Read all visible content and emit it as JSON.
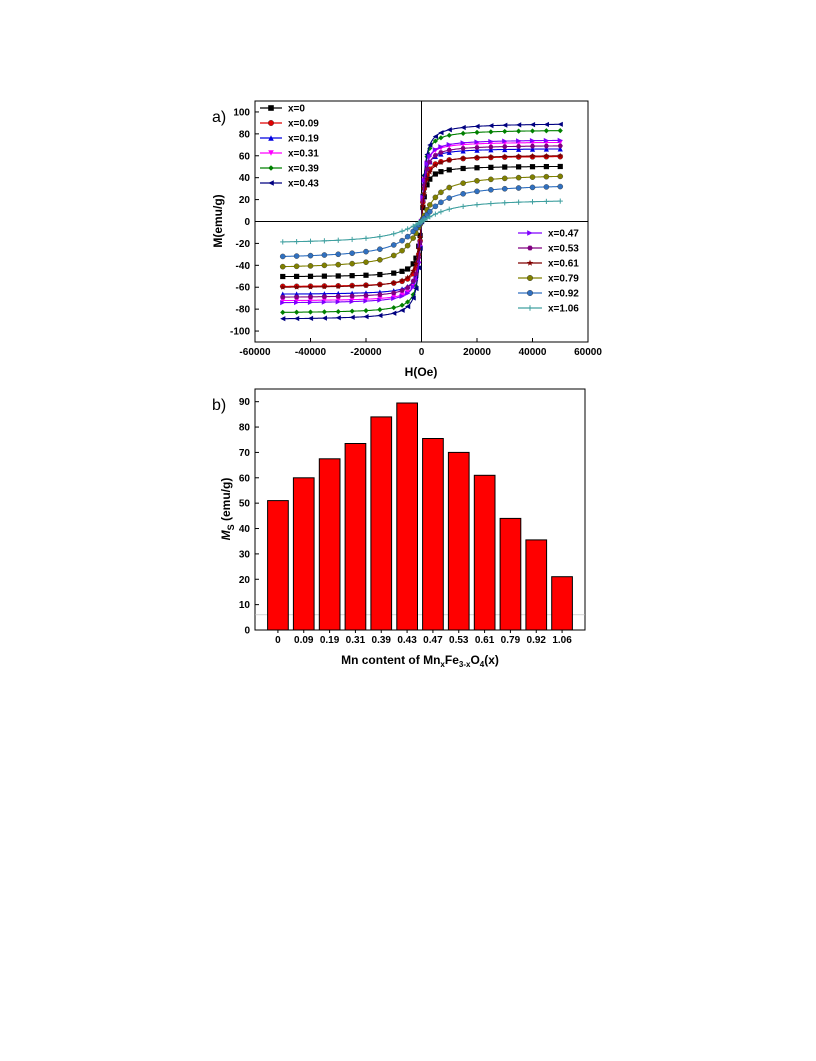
{
  "figure": {
    "panel_a_label": "a)",
    "panel_b_label": "b)"
  },
  "chart_data": [
    {
      "type": "line",
      "panel": "a)",
      "xlabel": "H(Oe)",
      "ylabel": "M(emu/g)",
      "xlim": [
        -60000,
        60000
      ],
      "ylim": [
        -110,
        110
      ],
      "xticks": [
        -60000,
        -40000,
        -20000,
        0,
        20000,
        40000,
        60000
      ],
      "yticks": [
        -100,
        -80,
        -60,
        -40,
        -20,
        0,
        20,
        40,
        60,
        80,
        100
      ],
      "grid": false,
      "legend_placement": [
        "top-left",
        "bottom-right"
      ],
      "x": [
        -50000,
        -45000,
        -40000,
        -35000,
        -30000,
        -25000,
        -20000,
        -15000,
        -10000,
        -7000,
        -5000,
        -3000,
        -2000,
        -1000,
        -500,
        0,
        500,
        1000,
        2000,
        3000,
        5000,
        7000,
        10000,
        15000,
        20000,
        25000,
        30000,
        35000,
        40000,
        45000,
        50000
      ],
      "series": [
        {
          "name": "x=0",
          "color": "#000000",
          "marker": "square",
          "ms": 51,
          "hs": 1200
        },
        {
          "name": "x=0.09",
          "color": "#e00000",
          "marker": "circle",
          "ms": 60,
          "hs": 1000
        },
        {
          "name": "x=0.19",
          "color": "#0000e0",
          "marker": "triangle-up",
          "ms": 67,
          "hs": 900
        },
        {
          "name": "x=0.31",
          "color": "#ff00ff",
          "marker": "triangle-down",
          "ms": 73,
          "hs": 900
        },
        {
          "name": "x=0.39",
          "color": "#008000",
          "marker": "diamond",
          "ms": 84,
          "hs": 1000
        },
        {
          "name": "x=0.43",
          "color": "#000080",
          "marker": "triangle-left",
          "ms": 90,
          "hs": 1100
        },
        {
          "name": "x=0.47",
          "color": "#8000ff",
          "marker": "triangle-right",
          "ms": 75,
          "hs": 1000
        },
        {
          "name": "x=0.53",
          "color": "#800080",
          "marker": "hexagon",
          "ms": 70,
          "hs": 1100
        },
        {
          "name": "x=0.61",
          "color": "#800000",
          "marker": "star",
          "ms": 61,
          "hs": 1300
        },
        {
          "name": "x=0.79",
          "color": "#808000",
          "marker": "circle",
          "ms": 44,
          "hs": 5000
        },
        {
          "name": "x=0.92",
          "color": "#3070c0",
          "marker": "circle",
          "ms": 35,
          "hs": 7000
        },
        {
          "name": "x=1.06",
          "color": "#40a0a0",
          "marker": "plus",
          "ms": 21,
          "hs": 9000
        }
      ]
    },
    {
      "type": "bar",
      "panel": "b)",
      "categories": [
        "0",
        "0.09",
        "0.19",
        "0.31",
        "0.39",
        "0.43",
        "0.47",
        "0.53",
        "0.61",
        "0.79",
        "0.92",
        "1.06"
      ],
      "values": [
        51,
        60,
        67.5,
        73.5,
        84,
        89.5,
        75.5,
        70,
        61,
        44,
        35.5,
        21
      ],
      "ylim": [
        0,
        95
      ],
      "yticks": [
        0,
        10,
        20,
        30,
        40,
        50,
        60,
        70,
        80,
        90
      ],
      "bar_color": "#ff0000",
      "ylabel_main": "M",
      "ylabel_sub": "S",
      "ylabel_rest": " (emu/g)",
      "xlabel_parts": [
        "Mn content of Mn",
        "x",
        "Fe",
        "3-x",
        "O",
        "4",
        "(x)"
      ]
    }
  ]
}
